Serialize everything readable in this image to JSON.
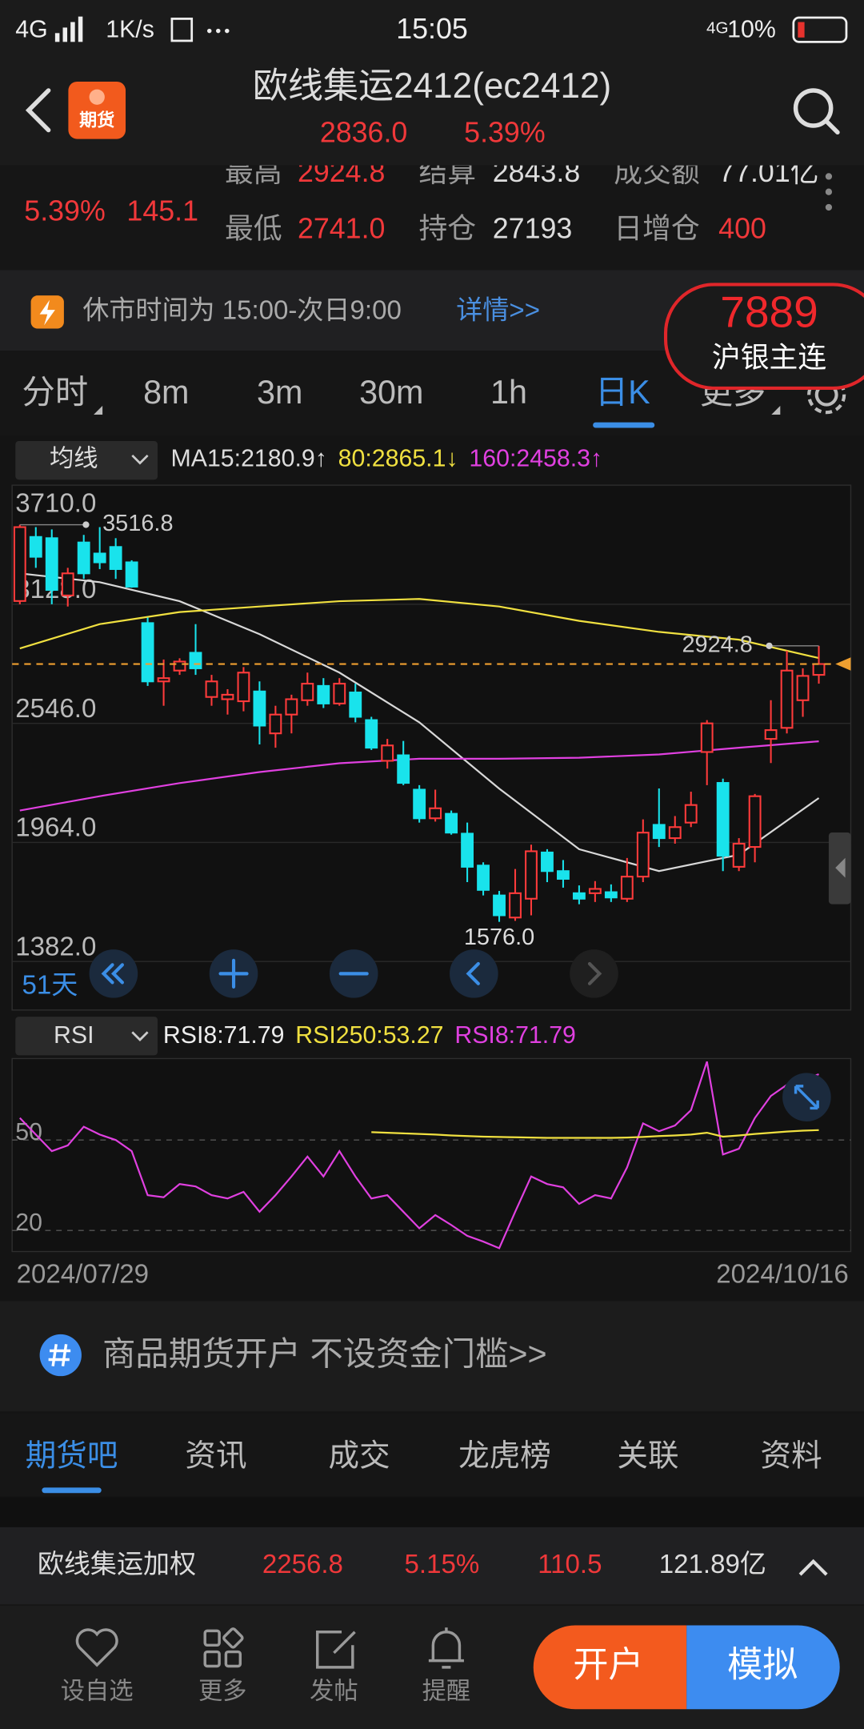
{
  "status_bar": {
    "network": "4G",
    "speed": "1K/s",
    "time": "15:05",
    "network_right": "4G",
    "battery": "10%"
  },
  "app_icon": "期货",
  "header": {
    "title": "欧线集运2412(ec2412)",
    "price": "2836.0",
    "change_pct": "5.39%"
  },
  "quote": {
    "change_pct": "5.39%",
    "change": "145.1",
    "rows": [
      [
        "最高",
        "2924.8",
        "结算",
        "2843.8",
        "成交额",
        "77.01亿"
      ],
      [
        "最低",
        "2741.0",
        "持仓",
        "27193",
        "日增仓",
        "400"
      ]
    ]
  },
  "notice": {
    "text": "休市时间为 15:00-次日9:00",
    "link": "详情>>"
  },
  "popup": {
    "price": "7889",
    "name": "沪银主连"
  },
  "period_tabs": [
    "分时",
    "8m",
    "3m",
    "30m",
    "1h",
    "日K",
    "更多"
  ],
  "period_active": 5,
  "kline": {
    "indicator": "均线",
    "ma_legend": [
      {
        "text": "MA15:2180.9↑",
        "color": "#dddddd"
      },
      {
        "text": "80:2865.1↓",
        "color": "#f0e040"
      },
      {
        "text": "160:2458.3↑",
        "color": "#e040e0"
      }
    ],
    "ylim": [
      1382,
      3710
    ],
    "yticks": [
      {
        "value": 3710,
        "label": "3710.0"
      },
      {
        "value": 3128,
        "label": "3128.0"
      },
      {
        "value": 2546,
        "label": "2546.0"
      },
      {
        "value": 1964,
        "label": "1964.0"
      },
      {
        "value": 1382,
        "label": "1382.0"
      }
    ],
    "up_color": "#ff3b3b",
    "down_color": "#19e3ec",
    "candles": [
      [
        3144,
        3516.8,
        3128,
        3505
      ],
      [
        3457,
        3505,
        3306,
        3360
      ],
      [
        3451,
        3494,
        3128,
        3198
      ],
      [
        3171,
        3306,
        3117,
        3279
      ],
      [
        3430,
        3467,
        3252,
        3279
      ],
      [
        3376,
        3505,
        3300,
        3333
      ],
      [
        3408,
        3451,
        3252,
        3300
      ],
      [
        3333,
        3343,
        3209,
        3214
      ],
      [
        3036,
        3063,
        2729,
        2751
      ],
      [
        2751,
        2858,
        2632,
        2767
      ],
      [
        2804,
        2864,
        2783,
        2848
      ],
      [
        2891,
        3031,
        2783,
        2815
      ],
      [
        2675,
        2783,
        2632,
        2751
      ],
      [
        2664,
        2713,
        2589,
        2686
      ],
      [
        2654,
        2821,
        2605,
        2794
      ],
      [
        2702,
        2751,
        2443,
        2535
      ],
      [
        2497,
        2632,
        2427,
        2589
      ],
      [
        2589,
        2686,
        2497,
        2664
      ],
      [
        2659,
        2794,
        2632,
        2740
      ],
      [
        2729,
        2767,
        2621,
        2643
      ],
      [
        2643,
        2767,
        2632,
        2740
      ],
      [
        2697,
        2740,
        2551,
        2578
      ],
      [
        2562,
        2578,
        2416,
        2427
      ],
      [
        2363,
        2470,
        2325,
        2438
      ],
      [
        2390,
        2460,
        2244,
        2255
      ],
      [
        2222,
        2244,
        2061,
        2082
      ],
      [
        2082,
        2222,
        2066,
        2131
      ],
      [
        2104,
        2120,
        2002,
        2012
      ],
      [
        2007,
        2061,
        1770,
        1845
      ],
      [
        1851,
        1867,
        1705,
        1732
      ],
      [
        1705,
        1727,
        1576,
        1608
      ],
      [
        1597,
        1834,
        1581,
        1716
      ],
      [
        1689,
        1953,
        1608,
        1921
      ],
      [
        1915,
        1931,
        1770,
        1824
      ],
      [
        1824,
        1878,
        1743,
        1786
      ],
      [
        1716,
        1754,
        1662,
        1689
      ],
      [
        1716,
        1775,
        1673,
        1737
      ],
      [
        1721,
        1759,
        1673,
        1695
      ],
      [
        1689,
        1888,
        1673,
        1797
      ],
      [
        1797,
        2077,
        1770,
        2012
      ],
      [
        2050,
        2228,
        1942,
        1985
      ],
      [
        1985,
        2093,
        1958,
        2039
      ],
      [
        2061,
        2212,
        2039,
        2147
      ],
      [
        2406,
        2562,
        2244,
        2546
      ],
      [
        2255,
        2276,
        1824,
        1899
      ],
      [
        1845,
        1985,
        1824,
        1958
      ],
      [
        1942,
        2201,
        1867,
        2190
      ],
      [
        2470,
        2659,
        2352,
        2513
      ],
      [
        2524,
        2901,
        2497,
        2804
      ],
      [
        2659,
        2815,
        2578,
        2778
      ],
      [
        2783,
        2924.8,
        2740,
        2836
      ]
    ],
    "ma_lines": [
      {
        "color": "#d8d8d8",
        "x": [
          0,
          5,
          10,
          15,
          20,
          25,
          30,
          35,
          40,
          45,
          50
        ],
        "values": [
          3279,
          3236,
          3143,
          2982,
          2794,
          2551,
          2227,
          1931,
          1824,
          1904,
          2180.9
        ]
      },
      {
        "color": "#f0e040",
        "x": [
          0,
          5,
          10,
          15,
          20,
          25,
          30,
          35,
          40,
          45,
          50
        ],
        "values": [
          2912,
          3031,
          3090,
          3117,
          3143,
          3154,
          3117,
          3047,
          2993,
          2955,
          2865.1
        ]
      },
      {
        "color": "#e040e0",
        "x": [
          0,
          5,
          10,
          15,
          20,
          25,
          30,
          35,
          40,
          45,
          50
        ],
        "values": [
          2120,
          2190,
          2254,
          2308,
          2351,
          2373,
          2373,
          2378,
          2394,
          2427,
          2458.3
        ]
      }
    ],
    "annotations": [
      3516.8,
      2924.8,
      {
        "value": 1576,
        "label": "1576.0"
      }
    ],
    "days": "51天"
  },
  "rsi": {
    "indicator": "RSI",
    "legend": [
      {
        "text": "RSI8:71.79",
        "color": "#eeeeee"
      },
      {
        "text": "RSI250:53.27",
        "color": "#f0e040"
      },
      {
        "text": "RSI8:71.79",
        "color": "#e040e0"
      }
    ],
    "ylim": [
      13,
      77
    ],
    "yticks": [
      50,
      20
    ],
    "series": [
      {
        "color": "#e040e0",
        "values": [
          57.3,
          51.8,
          46.3,
          48.2,
          54.4,
          51.8,
          50.0,
          46.3,
          31.7,
          31.0,
          35.4,
          34.6,
          31.7,
          30.6,
          32.8,
          26.2,
          31.7,
          37.9,
          44.5,
          37.9,
          46.3,
          37.9,
          30.6,
          31.7,
          26.2,
          20.7,
          25.1,
          21.8,
          18.2,
          16.3,
          14.1,
          26.2,
          37.9,
          35.4,
          34.3,
          28.8,
          31.7,
          30.6,
          40.9,
          55.5,
          52.9,
          54.8,
          59.9,
          76.0,
          45.2,
          47.1,
          57.3,
          64.6,
          68.3,
          70.1,
          71.79
        ]
      },
      {
        "color": "#f0e040",
        "values": [
          null,
          null,
          null,
          null,
          null,
          null,
          null,
          null,
          null,
          null,
          null,
          null,
          null,
          null,
          null,
          null,
          null,
          null,
          null,
          null,
          null,
          null,
          52.6,
          52.4,
          52.2,
          52.0,
          51.8,
          51.5,
          51.3,
          51.1,
          51.0,
          50.9,
          50.8,
          50.7,
          50.7,
          50.7,
          50.7,
          50.7,
          50.8,
          51.0,
          51.3,
          51.5,
          51.8,
          52.4,
          51.1,
          51.5,
          52.0,
          52.4,
          52.8,
          53.1,
          53.27
        ]
      }
    ]
  },
  "dates": [
    "2024/07/29",
    "2024/10/16"
  ],
  "banner": "商品期货开户 不设资金门槛>>",
  "bottom_tabs": [
    "期货吧",
    "资讯",
    "成交",
    "龙虎榜",
    "关联",
    "资料"
  ],
  "bottom_active": 0,
  "ticker": {
    "name": "欧线集运加权",
    "price": "2256.8",
    "change_pct": "5.15%",
    "change": "110.5",
    "amount": "121.89亿"
  },
  "nav": [
    "设自选",
    "更多",
    "发帖",
    "提醒"
  ],
  "buttons": [
    "开户",
    "模拟"
  ]
}
